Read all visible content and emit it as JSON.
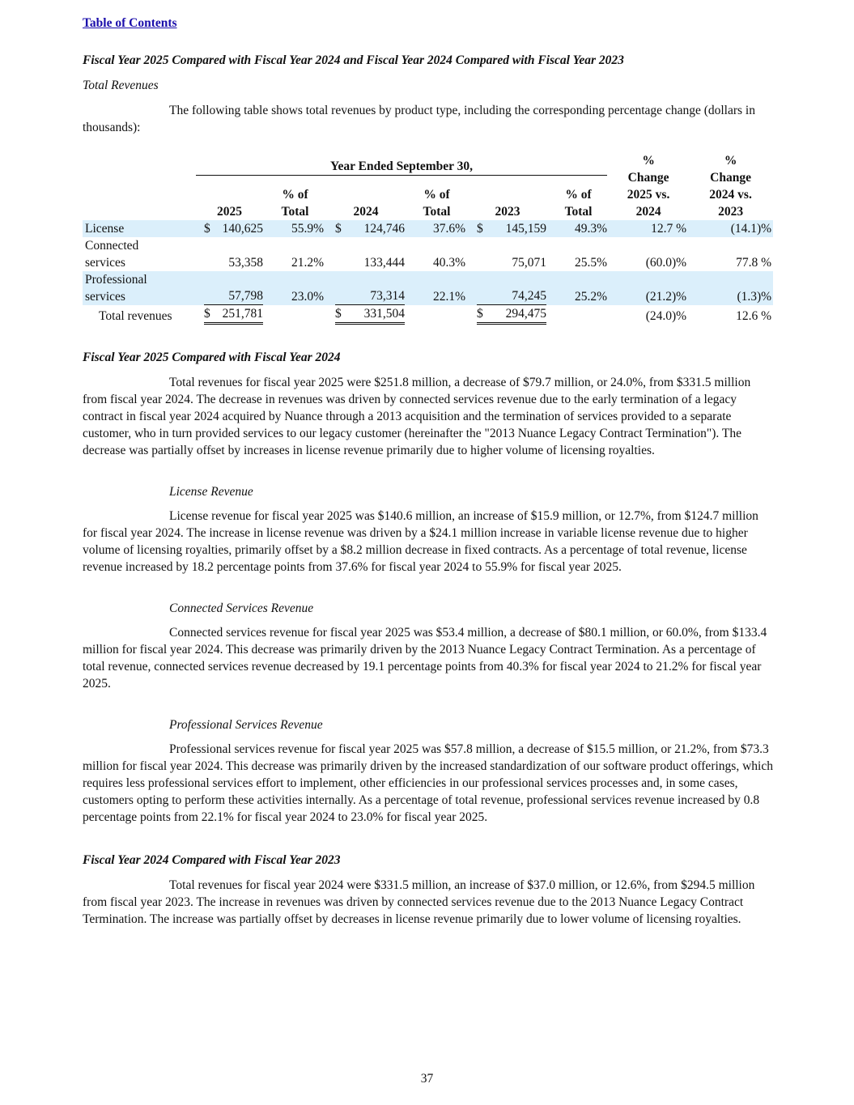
{
  "header": {
    "toc_link": "Table of Contents"
  },
  "heading": "Fiscal Year 2025 Compared with Fiscal Year 2024 and Fiscal Year 2024 Compared with Fiscal Year 2023",
  "subheading": "Total Revenues",
  "intro": "The following table shows total revenues by product type, including the corresponding percentage change (dollars in thousands):",
  "table": {
    "group_header": "Year Ended September 30,",
    "columns": [
      [
        "2025"
      ],
      [
        "% of",
        "Total"
      ],
      [
        "2024"
      ],
      [
        "% of",
        "Total"
      ],
      [
        "2023"
      ],
      [
        "% of",
        "Total"
      ],
      [
        "%",
        "Change",
        "2025 vs.",
        "2024"
      ],
      [
        "%",
        "Change",
        "2024 vs.",
        "2023"
      ]
    ],
    "rows": [
      {
        "label": "License",
        "cells": [
          {
            "currency": "$",
            "amount": "140,625"
          },
          "55.9%",
          {
            "currency": "$",
            "amount": "124,746"
          },
          "37.6%",
          {
            "currency": "$",
            "amount": "145,159"
          },
          "49.3%",
          "12.7 %",
          "(14.1)%"
        ]
      },
      {
        "label": "Connected services",
        "cells": [
          "53,358",
          "21.2%",
          "133,444",
          "40.3%",
          "75,071",
          "25.5%",
          "(60.0)%",
          "77.8 %"
        ]
      },
      {
        "label": "Professional services",
        "cells": [
          "57,798",
          "23.0%",
          "73,314",
          "22.1%",
          "74,245",
          "25.2%",
          "(21.2)%",
          "(1.3)%"
        ]
      },
      {
        "label": "Total revenues",
        "cells": [
          {
            "currency": "$",
            "amount": "251,781"
          },
          "",
          {
            "currency": "$",
            "amount": "331,504"
          },
          "",
          {
            "currency": "$",
            "amount": "294,475"
          },
          "",
          "(24.0)%",
          "12.6 %"
        ]
      }
    ]
  },
  "sections": [
    {
      "title": "Fiscal Year 2025 Compared with Fiscal Year 2024",
      "paragraphs": [
        "Total revenues for fiscal year 2025 were $251.8 million, a decrease of $79.7 million, or 24.0%, from $331.5 million from fiscal year 2024. The decrease in revenues was driven by connected services revenue due to the early termination of a legacy contract in fiscal year 2024 acquired by Nuance through a 2013 acquisition and the termination of services provided to a separate customer, who in turn provided services to our legacy customer (hereinafter the \"2013 Nuance Legacy Contract Termination\"). The decrease was partially offset by increases in license revenue primarily due to higher volume of licensing royalties."
      ],
      "subsections": [
        {
          "title": "License Revenue",
          "paragraphs": [
            "License revenue for fiscal year 2025 was $140.6 million, an increase of $15.9 million, or 12.7%, from $124.7 million for fiscal year 2024. The increase in license revenue was driven by a $24.1 million increase in variable license revenue due to higher volume of licensing royalties, primarily offset by a $8.2 million decrease in fixed contracts. As a percentage of total revenue, license revenue increased by 18.2 percentage points from 37.6% for fiscal year 2024 to 55.9% for fiscal year 2025."
          ]
        },
        {
          "title": "Connected Services Revenue",
          "paragraphs": [
            "Connected services revenue for fiscal year 2025 was $53.4 million, a decrease of $80.1 million, or 60.0%, from $133.4 million for fiscal year 2024. This decrease was primarily driven by the 2013 Nuance Legacy Contract Termination. As a percentage of total revenue, connected services revenue decreased by 19.1 percentage points from 40.3% for fiscal year 2024 to 21.2% for fiscal year 2025."
          ]
        },
        {
          "title": "Professional Services Revenue",
          "paragraphs": [
            "Professional services revenue for fiscal year 2025 was $57.8 million, a decrease of $15.5 million, or 21.2%, from $73.3 million for fiscal year 2024. This decrease was primarily driven by the increased standardization of our software product offerings, which requires less professional services effort to implement, other efficiencies in our professional services processes and, in some cases, customers opting to perform these activities internally. As a percentage of total revenue, professional services revenue increased by 0.8 percentage points from 22.1% for fiscal year 2024 to 23.0% for fiscal year 2025."
          ]
        }
      ]
    },
    {
      "title": "Fiscal Year 2024 Compared with Fiscal Year 2023",
      "paragraphs": [
        "Total revenues for fiscal year 2024 were $331.5 million, an increase of $37.0 million, or 12.6%, from $294.5 million from fiscal year 2023. The increase in revenues was driven by connected services revenue due to the 2013 Nuance Legacy Contract Termination. The increase was partially offset by decreases in license revenue primarily due to lower volume of licensing royalties."
      ],
      "subsections": []
    }
  ],
  "footer": {
    "page_number": "37"
  }
}
